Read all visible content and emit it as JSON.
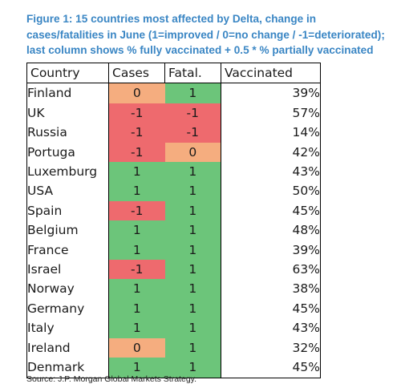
{
  "title_lines": [
    "Figure 1: 15 countries most affected by Delta, change in",
    "cases/fatalities in June (1=improved / 0=no change / -1=deteriorated);",
    "last column shows % fully vaccinated + 0.5 * % partially vaccinated"
  ],
  "source": "Source: J.P. Morgan Global Markets Strategy.",
  "colors": {
    "improved": "#6cc57a",
    "no_change": "#f5ad7f",
    "deteriorated": "#ee6a6e"
  },
  "chart_data": {
    "type": "table",
    "columns": [
      "Country",
      "Cases",
      "Fatal.",
      "Vaccinated"
    ],
    "rows": [
      {
        "country": "Finland",
        "cases": 0,
        "fatal": 1,
        "vaccinated": "39%"
      },
      {
        "country": "UK",
        "cases": -1,
        "fatal": -1,
        "vaccinated": "57%"
      },
      {
        "country": "Russia",
        "cases": -1,
        "fatal": -1,
        "vaccinated": "14%"
      },
      {
        "country": "Portuga",
        "cases": -1,
        "fatal": 0,
        "vaccinated": "42%"
      },
      {
        "country": "Luxemburg",
        "cases": 1,
        "fatal": 1,
        "vaccinated": "43%"
      },
      {
        "country": "USA",
        "cases": 1,
        "fatal": 1,
        "vaccinated": "50%"
      },
      {
        "country": "Spain",
        "cases": -1,
        "fatal": 1,
        "vaccinated": "45%"
      },
      {
        "country": "Belgium",
        "cases": 1,
        "fatal": 1,
        "vaccinated": "48%"
      },
      {
        "country": "France",
        "cases": 1,
        "fatal": 1,
        "vaccinated": "39%"
      },
      {
        "country": "Israel",
        "cases": -1,
        "fatal": 1,
        "vaccinated": "63%"
      },
      {
        "country": "Norway",
        "cases": 1,
        "fatal": 1,
        "vaccinated": "38%"
      },
      {
        "country": "Germany",
        "cases": 1,
        "fatal": 1,
        "vaccinated": "45%"
      },
      {
        "country": "Italy",
        "cases": 1,
        "fatal": 1,
        "vaccinated": "43%"
      },
      {
        "country": "Ireland",
        "cases": 0,
        "fatal": 1,
        "vaccinated": "32%"
      },
      {
        "country": "Denmark",
        "cases": 1,
        "fatal": 1,
        "vaccinated": "45%"
      }
    ]
  }
}
